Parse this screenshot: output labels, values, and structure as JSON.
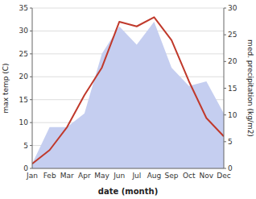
{
  "chart_data": {
    "type": "line",
    "categories": [
      "Jan",
      "Feb",
      "Mar",
      "Apr",
      "May",
      "Jun",
      "Jul",
      "Aug",
      "Sep",
      "Oct",
      "Nov",
      "Dec"
    ],
    "series": [
      {
        "type": "area",
        "color": "#c5cef0",
        "values": [
          1,
          9,
          9,
          12,
          25,
          31,
          27,
          32,
          22,
          18,
          19,
          12
        ]
      },
      {
        "type": "line",
        "color": "#c0392b",
        "values": [
          1,
          4,
          9,
          16,
          22,
          32,
          31,
          33,
          28,
          19,
          11,
          7
        ]
      }
    ],
    "x_label": "date (month)",
    "y_label": "max temp (C)",
    "y2_label": "med. precipitation (kg/m2)",
    "ylim": [
      0,
      35
    ],
    "yticks": [
      0,
      5,
      10,
      15,
      20,
      25,
      30,
      35
    ],
    "y2lim": [
      0,
      30
    ],
    "y2ticks": [
      0,
      5,
      10,
      15,
      20,
      25,
      30
    ],
    "grid": true
  }
}
